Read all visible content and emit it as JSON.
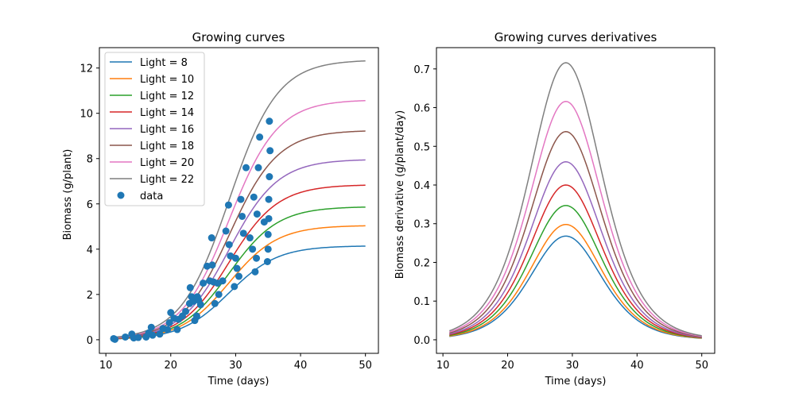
{
  "colors": {
    "series": [
      "#1f77b4",
      "#ff7f0e",
      "#2ca02c",
      "#d62728",
      "#9467bd",
      "#8c564b",
      "#e377c2",
      "#7f7f7f"
    ],
    "data_points": "#1f77b4",
    "axes": "#000000"
  },
  "chart_data": [
    {
      "type": "line",
      "title": "Growing curves",
      "xlabel": "Time (days)",
      "ylabel": "Biomass (g/plant)",
      "xlim": [
        9,
        52
      ],
      "ylim": [
        -0.6,
        12.9
      ],
      "xticks": [
        10,
        20,
        30,
        40,
        50
      ],
      "yticks": [
        0,
        2,
        4,
        6,
        8,
        10,
        12
      ],
      "grid": false,
      "legend": "top-left",
      "curve_x_range": [
        11,
        50
      ],
      "model": "logistic: y = A / (1 + exp(-(t - 29)/3.75))",
      "series": [
        {
          "name": "Light = 8",
          "asymptote": 4.15
        },
        {
          "name": "Light = 10",
          "asymptote": 5.05
        },
        {
          "name": "Light = 12",
          "asymptote": 5.88
        },
        {
          "name": "Light = 14",
          "asymptote": 6.85
        },
        {
          "name": "Light = 16",
          "asymptote": 7.97
        },
        {
          "name": "Light = 18",
          "asymptote": 9.25
        },
        {
          "name": "Light = 20",
          "asymptote": 10.6
        },
        {
          "name": "Light = 22",
          "asymptote": 12.36
        }
      ],
      "scatter": {
        "name": "data",
        "points": [
          [
            11.2,
            0.05
          ],
          [
            11.4,
            0.02
          ],
          [
            13.0,
            0.12
          ],
          [
            14.0,
            0.25
          ],
          [
            14.3,
            0.08
          ],
          [
            15.0,
            0.1
          ],
          [
            16.2,
            0.12
          ],
          [
            16.6,
            0.3
          ],
          [
            17.0,
            0.55
          ],
          [
            17.2,
            0.2
          ],
          [
            18.3,
            0.25
          ],
          [
            18.8,
            0.5
          ],
          [
            19.5,
            0.45
          ],
          [
            19.8,
            0.75
          ],
          [
            20.0,
            1.2
          ],
          [
            20.5,
            0.95
          ],
          [
            21.0,
            0.45
          ],
          [
            21.2,
            0.9
          ],
          [
            21.8,
            1.05
          ],
          [
            22.3,
            1.25
          ],
          [
            22.9,
            1.6
          ],
          [
            23.0,
            2.3
          ],
          [
            23.2,
            1.9
          ],
          [
            23.5,
            1.7
          ],
          [
            23.7,
            0.85
          ],
          [
            24.0,
            1.05
          ],
          [
            24.1,
            1.9
          ],
          [
            24.3,
            1.75
          ],
          [
            24.6,
            1.55
          ],
          [
            25.0,
            2.5
          ],
          [
            25.6,
            3.25
          ],
          [
            26.0,
            2.6
          ],
          [
            26.3,
            4.5
          ],
          [
            26.4,
            3.3
          ],
          [
            26.6,
            2.55
          ],
          [
            26.8,
            1.6
          ],
          [
            27.2,
            2.5
          ],
          [
            27.4,
            2.0
          ],
          [
            28.0,
            2.6
          ],
          [
            28.5,
            4.8
          ],
          [
            28.9,
            5.95
          ],
          [
            29.0,
            4.2
          ],
          [
            29.2,
            3.7
          ],
          [
            29.8,
            2.35
          ],
          [
            30.0,
            3.6
          ],
          [
            30.2,
            3.15
          ],
          [
            30.5,
            2.8
          ],
          [
            30.8,
            6.2
          ],
          [
            31.0,
            5.45
          ],
          [
            31.2,
            4.7
          ],
          [
            31.6,
            7.6
          ],
          [
            32.2,
            4.5
          ],
          [
            32.6,
            4.0
          ],
          [
            32.8,
            6.3
          ],
          [
            33.0,
            3.0
          ],
          [
            33.2,
            3.6
          ],
          [
            33.3,
            5.55
          ],
          [
            33.5,
            7.6
          ],
          [
            33.7,
            8.95
          ],
          [
            34.4,
            5.2
          ],
          [
            34.9,
            3.45
          ],
          [
            35.0,
            4.0
          ],
          [
            35.0,
            4.65
          ],
          [
            35.1,
            5.35
          ],
          [
            35.1,
            6.2
          ],
          [
            35.2,
            7.2
          ],
          [
            35.3,
            8.35
          ],
          [
            35.2,
            9.65
          ]
        ]
      }
    },
    {
      "type": "line",
      "title": "Growing curves derivatives",
      "xlabel": "Time (days)",
      "ylabel": "Biomass derivative (g/plant/day)",
      "xlim": [
        9,
        52
      ],
      "ylim": [
        -0.035,
        0.755
      ],
      "xticks": [
        10,
        20,
        30,
        40,
        50
      ],
      "yticks": [
        0.0,
        0.1,
        0.2,
        0.3,
        0.4,
        0.5,
        0.6,
        0.7
      ],
      "yticklabels": [
        "0.0",
        "0.1",
        "0.2",
        "0.3",
        "0.4",
        "0.5",
        "0.6",
        "0.7"
      ],
      "grid": false,
      "curve_x_range": [
        11,
        50
      ],
      "model": "derivative of logistic, peak at t = 29",
      "series": [
        {
          "peak": 0.268
        },
        {
          "peak": 0.298
        },
        {
          "peak": 0.347
        },
        {
          "peak": 0.4
        },
        {
          "peak": 0.46
        },
        {
          "peak": 0.538
        },
        {
          "peak": 0.616
        },
        {
          "peak": 0.716
        }
      ]
    }
  ]
}
